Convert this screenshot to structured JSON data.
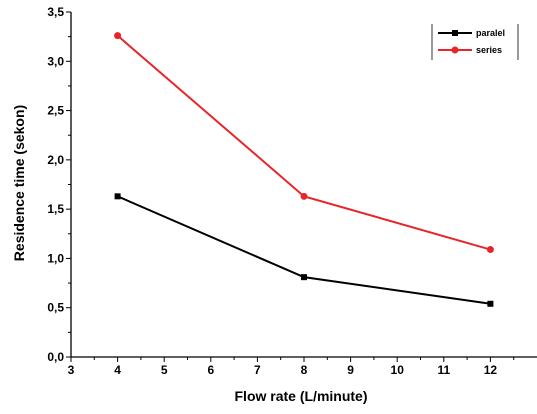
{
  "chart_data": {
    "type": "line",
    "title": "",
    "xlabel": "Flow rate (L/minute)",
    "ylabel": "Residence time (sekon)",
    "xlim": [
      3,
      13
    ],
    "ylim": [
      0,
      3.5
    ],
    "x_ticks": [
      "3",
      "4",
      "5",
      "6",
      "7",
      "8",
      "9",
      "10",
      "11",
      "12"
    ],
    "y_ticks": [
      "0,0",
      "0,5",
      "1,0",
      "1,5",
      "2,0",
      "2,5",
      "3,0",
      "3,5"
    ],
    "grid": false,
    "legend_position": "top-right",
    "series": [
      {
        "name": "paralel",
        "color": "#000000",
        "marker": "square",
        "x": [
          4,
          8,
          12
        ],
        "y": [
          1.63,
          0.81,
          0.54
        ]
      },
      {
        "name": "series",
        "color": "#e8262a",
        "marker": "circle",
        "x": [
          4,
          8,
          12
        ],
        "y": [
          3.26,
          1.63,
          1.09
        ]
      }
    ]
  }
}
